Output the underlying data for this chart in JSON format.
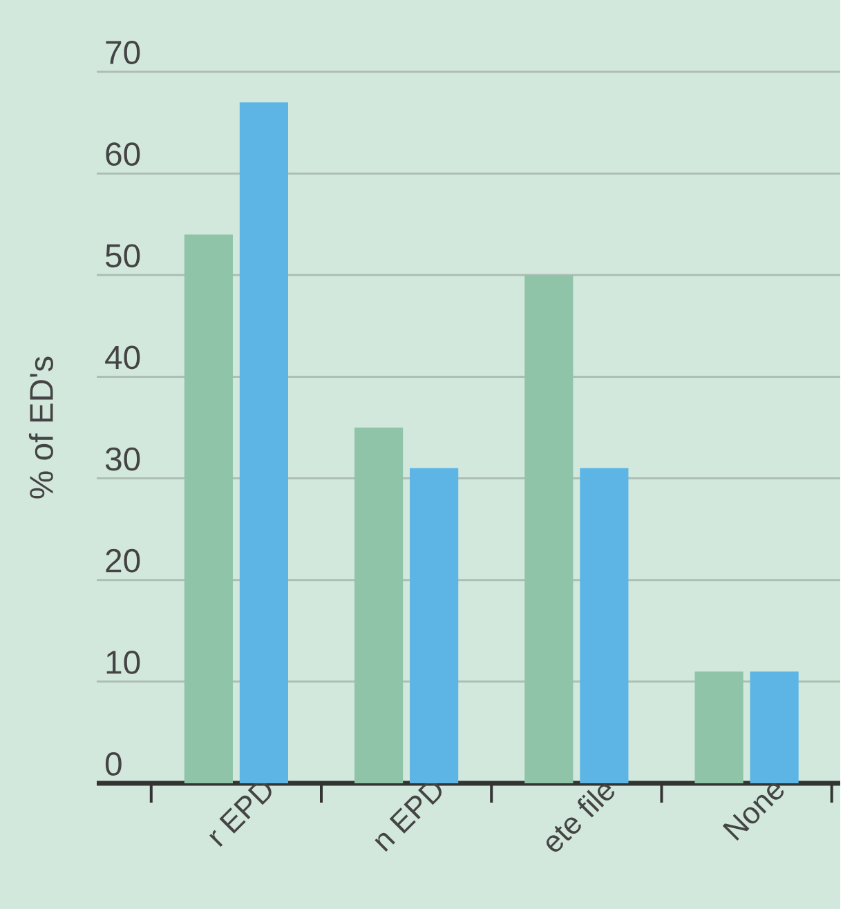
{
  "chart_data": {
    "type": "bar",
    "categories": [
      "r EPD",
      "n EPD",
      "ete file",
      "None"
    ],
    "series": [
      {
        "color": "#8fc4a9",
        "values": [
          54,
          35,
          50,
          11
        ]
      },
      {
        "color": "#5db5e6",
        "values": [
          67,
          31,
          31,
          11
        ]
      }
    ],
    "ylabel": "% of ED's",
    "ylim": [
      0,
      70
    ],
    "yticks": [
      0,
      10,
      20,
      30,
      40,
      50,
      60,
      70
    ],
    "grid": "y"
  }
}
